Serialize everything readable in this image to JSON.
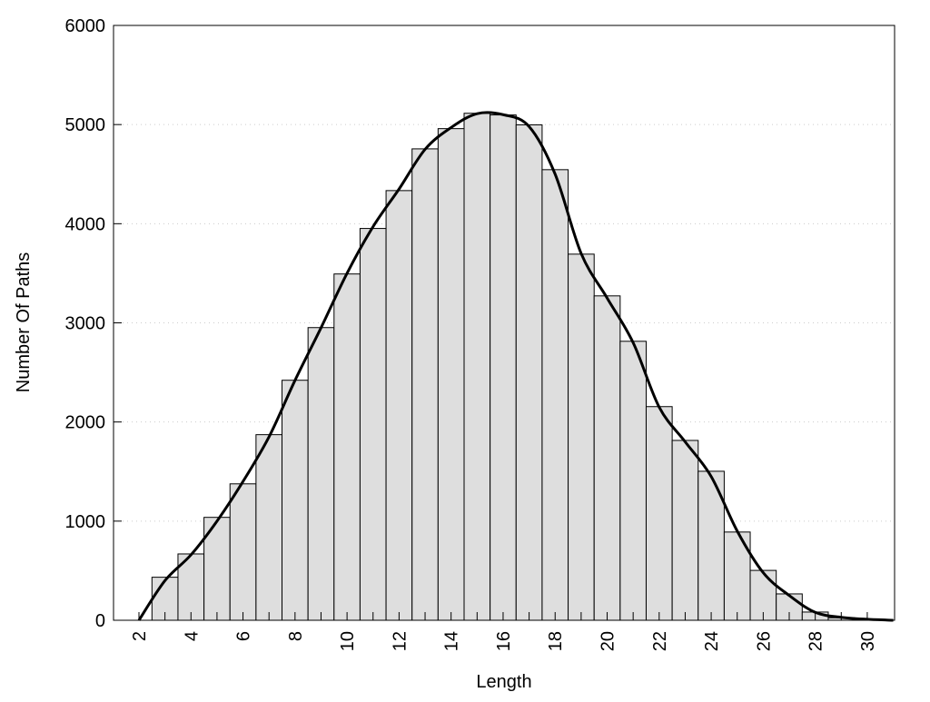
{
  "chart_data": {
    "type": "bar",
    "title": "",
    "xlabel": "Length",
    "ylabel": "Number Of Paths",
    "xlim": [
      1,
      31
    ],
    "ylim": [
      0,
      6000
    ],
    "grid": "horizontal dotted",
    "x_ticks": [
      2,
      4,
      6,
      8,
      10,
      12,
      14,
      16,
      18,
      20,
      22,
      24,
      26,
      28,
      30
    ],
    "y_ticks": [
      0,
      1000,
      2000,
      3000,
      4000,
      5000,
      6000
    ],
    "bar_color": "#dedede",
    "bar_edge_color": "#000000",
    "categories": [
      3,
      4,
      5,
      6,
      7,
      8,
      9,
      10,
      11,
      12,
      13,
      14,
      15,
      16,
      17,
      18,
      19,
      20,
      21,
      22,
      23,
      24,
      25,
      26,
      27,
      28,
      29,
      30
    ],
    "values": [
      434,
      669,
      1038,
      1376,
      1872,
      2421,
      2952,
      3493,
      3952,
      4334,
      4755,
      4959,
      5114,
      5097,
      4997,
      4545,
      3693,
      3272,
      2814,
      2155,
      1814,
      1503,
      890,
      503,
      266,
      83,
      25,
      10
    ],
    "curve": {
      "color": "#000000",
      "x": [
        2,
        3,
        4,
        5,
        6,
        7,
        8,
        9,
        10,
        11,
        12,
        13,
        14,
        15,
        16,
        17,
        18,
        19,
        20,
        21,
        22,
        23,
        24,
        25,
        26,
        27,
        28,
        29,
        30,
        31
      ],
      "y": [
        0,
        400,
        660,
        1000,
        1400,
        1850,
        2420,
        2950,
        3500,
        3970,
        4350,
        4750,
        4970,
        5110,
        5100,
        4980,
        4500,
        3700,
        3250,
        2800,
        2150,
        1800,
        1450,
        900,
        480,
        250,
        80,
        30,
        10,
        0
      ]
    }
  }
}
